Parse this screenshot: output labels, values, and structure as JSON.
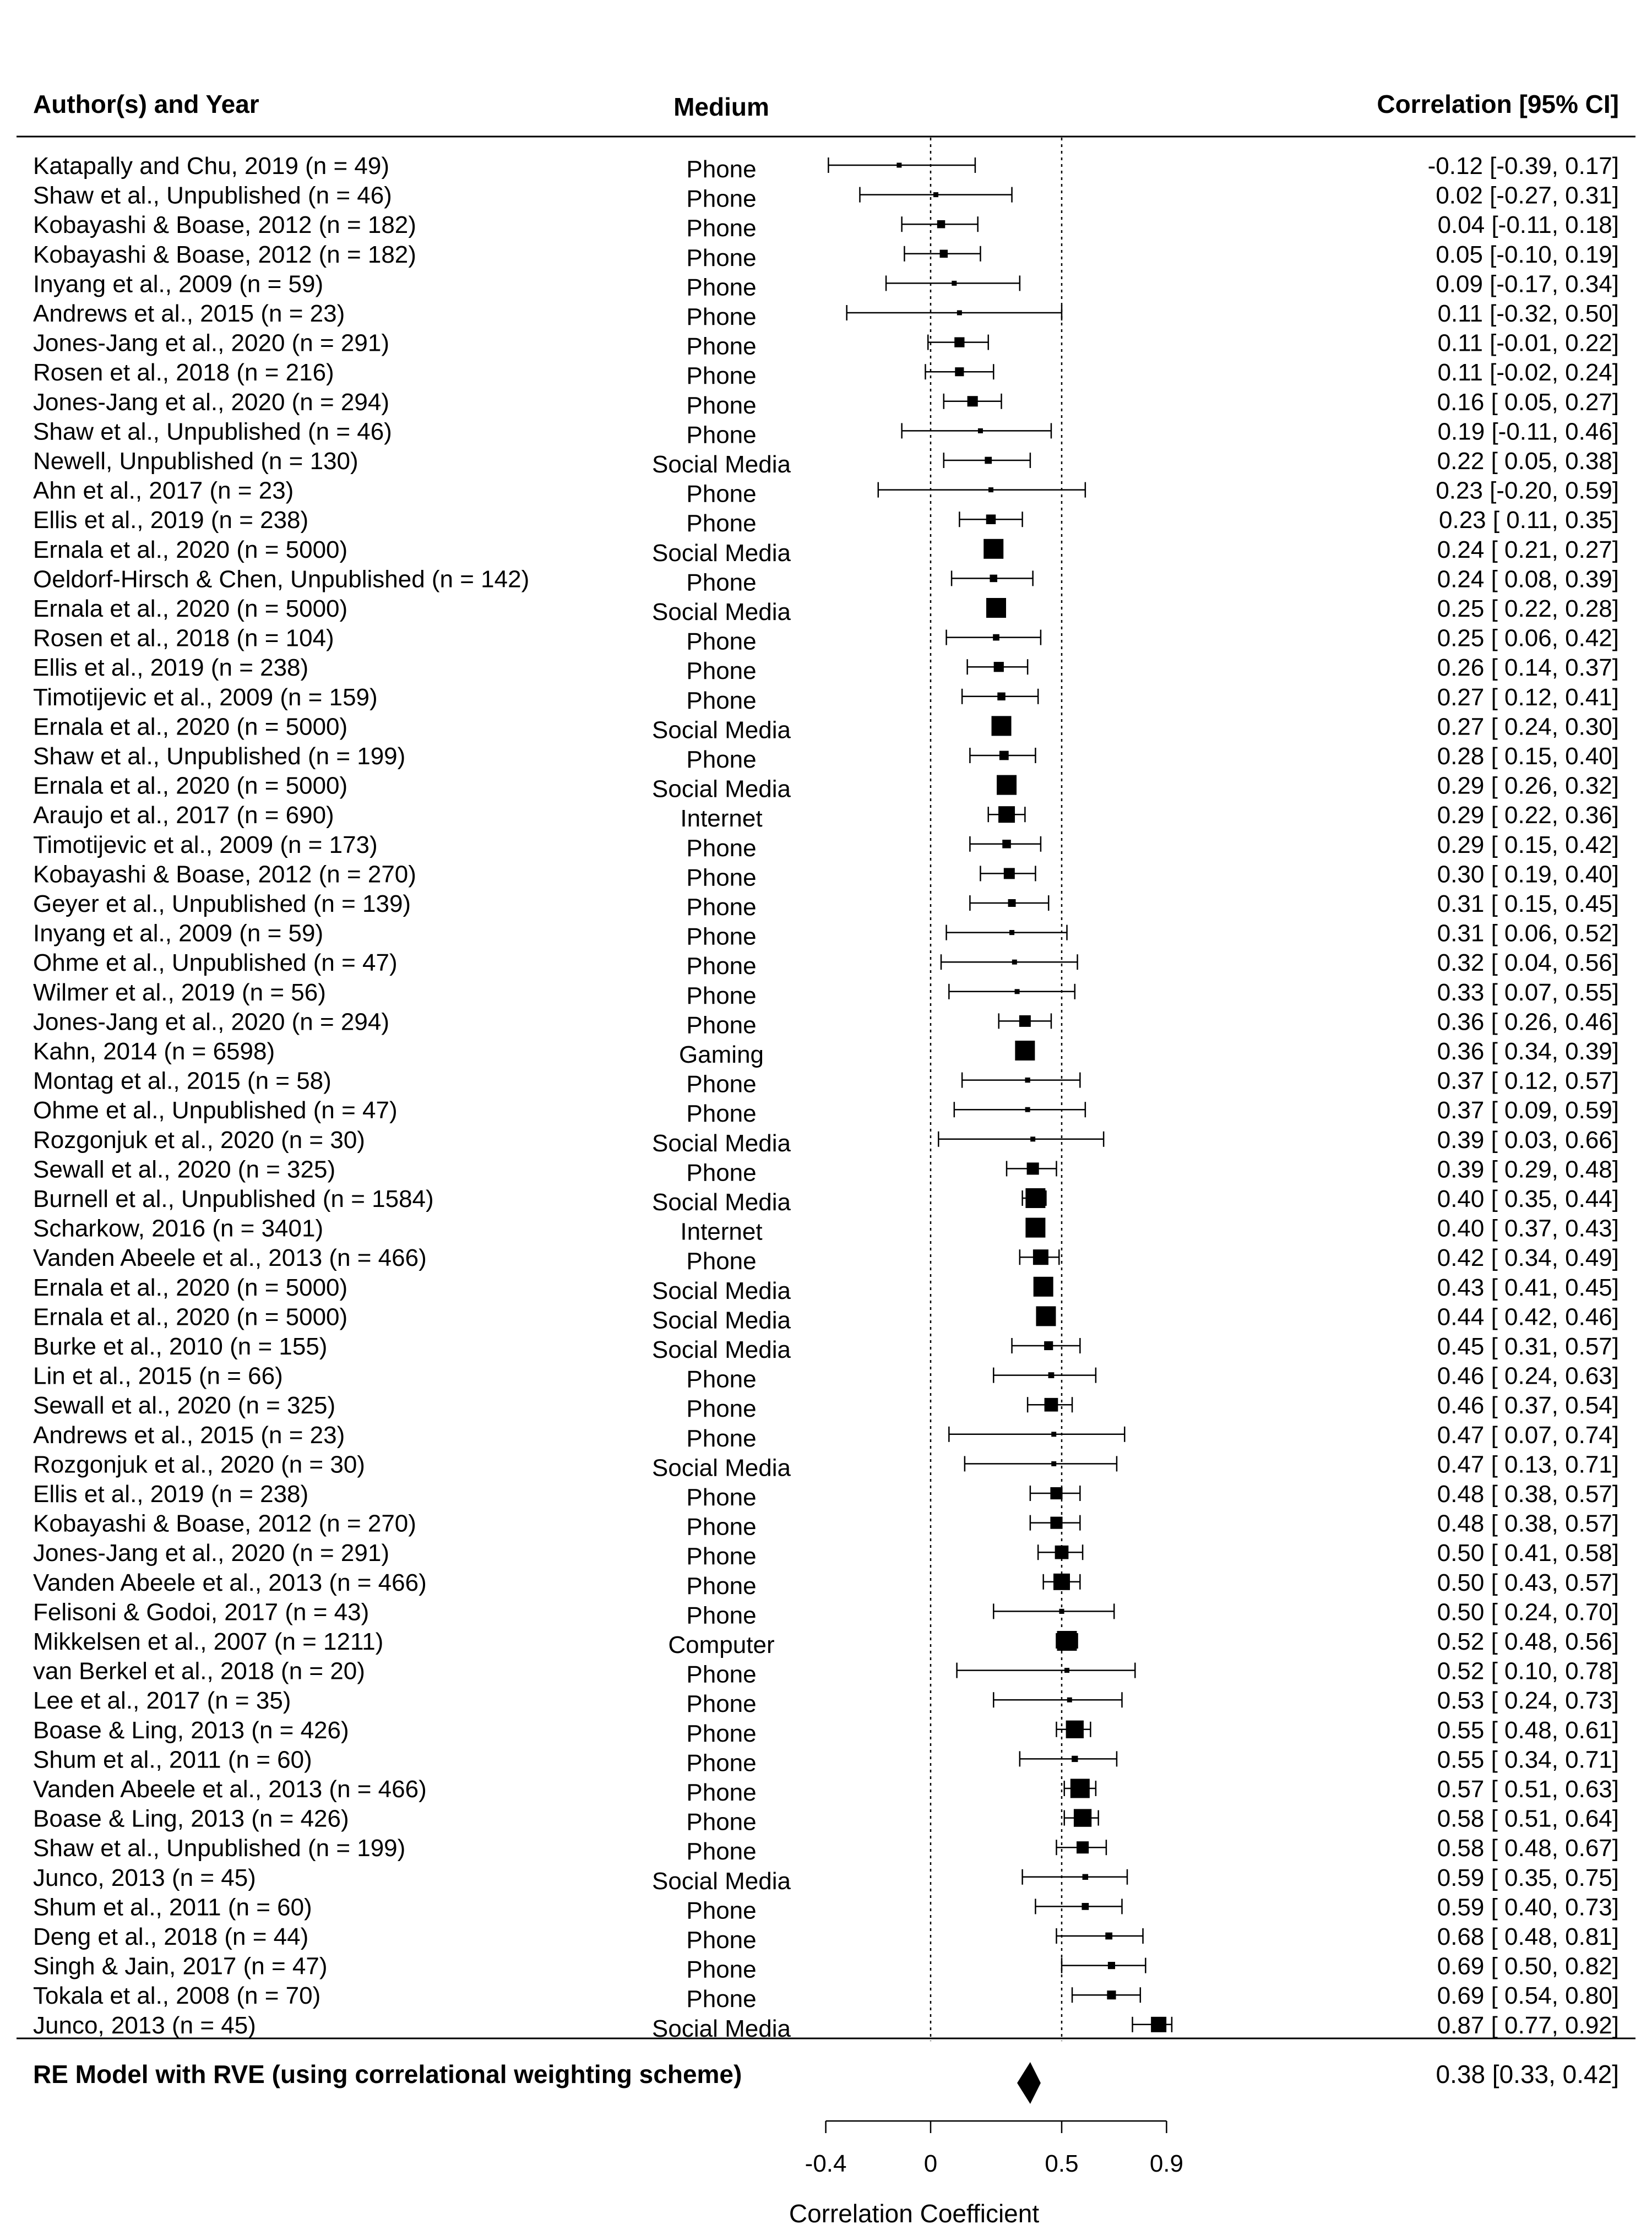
{
  "header": {
    "study": "Author(s) and Year",
    "medium": "Medium",
    "estimate": "Correlation [95% CI]"
  },
  "summary": {
    "label": "RE Model with RVE (using correlational weighting scheme)",
    "ci_text": "0.38 [0.33, 0.42]"
  },
  "chart_data": {
    "type": "forest",
    "xlabel": "Correlation Coefficient",
    "xticks": [
      -0.4,
      0,
      0.5,
      0.9
    ],
    "xtick_labels": [
      "-0.4",
      "0",
      "0.5",
      "0.9"
    ],
    "xlim": [
      -0.4,
      0.9
    ],
    "reference_lines": [
      0,
      0.5
    ],
    "summary": {
      "estimate": 0.38,
      "lower": 0.33,
      "upper": 0.42
    },
    "studies": [
      {
        "label": "Katapally and Chu, 2019 (n = 49)",
        "medium": "Phone",
        "r": -0.12,
        "lo": -0.39,
        "hi": 0.17,
        "ci_text": "-0.12 [-0.39, 0.17]"
      },
      {
        "label": "Shaw et al., Unpublished (n = 46)",
        "medium": "Phone",
        "r": 0.02,
        "lo": -0.27,
        "hi": 0.31,
        "ci_text": "0.02 [-0.27, 0.31]"
      },
      {
        "label": "Kobayashi & Boase, 2012 (n = 182)",
        "medium": "Phone",
        "r": 0.04,
        "lo": -0.11,
        "hi": 0.18,
        "ci_text": "0.04 [-0.11, 0.18]"
      },
      {
        "label": "Kobayashi & Boase, 2012 (n = 182)",
        "medium": "Phone",
        "r": 0.05,
        "lo": -0.1,
        "hi": 0.19,
        "ci_text": "0.05 [-0.10, 0.19]"
      },
      {
        "label": "Inyang et al., 2009 (n = 59)",
        "medium": "Phone",
        "r": 0.09,
        "lo": -0.17,
        "hi": 0.34,
        "ci_text": "0.09 [-0.17, 0.34]"
      },
      {
        "label": "Andrews et al., 2015 (n = 23)",
        "medium": "Phone",
        "r": 0.11,
        "lo": -0.32,
        "hi": 0.5,
        "ci_text": "0.11 [-0.32, 0.50]"
      },
      {
        "label": "Jones-Jang et al., 2020 (n = 291)",
        "medium": "Phone",
        "r": 0.11,
        "lo": -0.01,
        "hi": 0.22,
        "ci_text": "0.11 [-0.01, 0.22]"
      },
      {
        "label": "Rosen et al., 2018 (n = 216)",
        "medium": "Phone",
        "r": 0.11,
        "lo": -0.02,
        "hi": 0.24,
        "ci_text": "0.11 [-0.02, 0.24]"
      },
      {
        "label": "Jones-Jang et al., 2020 (n = 294)",
        "medium": "Phone",
        "r": 0.16,
        "lo": 0.05,
        "hi": 0.27,
        "ci_text": "0.16 [ 0.05, 0.27]"
      },
      {
        "label": "Shaw et al., Unpublished (n = 46)",
        "medium": "Phone",
        "r": 0.19,
        "lo": -0.11,
        "hi": 0.46,
        "ci_text": "0.19 [-0.11, 0.46]"
      },
      {
        "label": "Newell, Unpublished (n = 130)",
        "medium": "Social Media",
        "r": 0.22,
        "lo": 0.05,
        "hi": 0.38,
        "ci_text": "0.22 [ 0.05, 0.38]"
      },
      {
        "label": "Ahn et al., 2017 (n = 23)",
        "medium": "Phone",
        "r": 0.23,
        "lo": -0.2,
        "hi": 0.59,
        "ci_text": "0.23 [-0.20, 0.59]"
      },
      {
        "label": "Ellis et al., 2019 (n = 238)",
        "medium": "Phone",
        "r": 0.23,
        "lo": 0.11,
        "hi": 0.35,
        "ci_text": "0.23 [ 0.11, 0.35]"
      },
      {
        "label": "Ernala et al., 2020 (n = 5000)",
        "medium": "Social Media",
        "r": 0.24,
        "lo": 0.21,
        "hi": 0.27,
        "ci_text": "0.24 [ 0.21, 0.27]"
      },
      {
        "label": "Oeldorf-Hirsch & Chen, Unpublished (n = 142)",
        "medium": "Phone",
        "r": 0.24,
        "lo": 0.08,
        "hi": 0.39,
        "ci_text": "0.24 [ 0.08, 0.39]"
      },
      {
        "label": "Ernala et al., 2020 (n = 5000)",
        "medium": "Social Media",
        "r": 0.25,
        "lo": 0.22,
        "hi": 0.28,
        "ci_text": "0.25 [ 0.22, 0.28]"
      },
      {
        "label": "Rosen et al., 2018 (n = 104)",
        "medium": "Phone",
        "r": 0.25,
        "lo": 0.06,
        "hi": 0.42,
        "ci_text": "0.25 [ 0.06, 0.42]"
      },
      {
        "label": "Ellis et al., 2019 (n = 238)",
        "medium": "Phone",
        "r": 0.26,
        "lo": 0.14,
        "hi": 0.37,
        "ci_text": "0.26 [ 0.14, 0.37]"
      },
      {
        "label": "Timotijevic et al., 2009 (n = 159)",
        "medium": "Phone",
        "r": 0.27,
        "lo": 0.12,
        "hi": 0.41,
        "ci_text": "0.27 [ 0.12, 0.41]"
      },
      {
        "label": "Ernala et al., 2020 (n = 5000)",
        "medium": "Social Media",
        "r": 0.27,
        "lo": 0.24,
        "hi": 0.3,
        "ci_text": "0.27 [ 0.24, 0.30]"
      },
      {
        "label": "Shaw et al., Unpublished (n = 199)",
        "medium": "Phone",
        "r": 0.28,
        "lo": 0.15,
        "hi": 0.4,
        "ci_text": "0.28 [ 0.15, 0.40]"
      },
      {
        "label": "Ernala et al., 2020 (n = 5000)",
        "medium": "Social Media",
        "r": 0.29,
        "lo": 0.26,
        "hi": 0.32,
        "ci_text": "0.29 [ 0.26, 0.32]"
      },
      {
        "label": "Araujo et al., 2017 (n = 690)",
        "medium": "Internet",
        "r": 0.29,
        "lo": 0.22,
        "hi": 0.36,
        "ci_text": "0.29 [ 0.22, 0.36]"
      },
      {
        "label": "Timotijevic et al., 2009 (n = 173)",
        "medium": "Phone",
        "r": 0.29,
        "lo": 0.15,
        "hi": 0.42,
        "ci_text": "0.29 [ 0.15, 0.42]"
      },
      {
        "label": "Kobayashi & Boase, 2012 (n = 270)",
        "medium": "Phone",
        "r": 0.3,
        "lo": 0.19,
        "hi": 0.4,
        "ci_text": "0.30 [ 0.19, 0.40]"
      },
      {
        "label": "Geyer et al., Unpublished (n = 139)",
        "medium": "Phone",
        "r": 0.31,
        "lo": 0.15,
        "hi": 0.45,
        "ci_text": "0.31 [ 0.15, 0.45]"
      },
      {
        "label": "Inyang et al., 2009 (n = 59)",
        "medium": "Phone",
        "r": 0.31,
        "lo": 0.06,
        "hi": 0.52,
        "ci_text": "0.31 [ 0.06, 0.52]"
      },
      {
        "label": "Ohme et al., Unpublished (n = 47)",
        "medium": "Phone",
        "r": 0.32,
        "lo": 0.04,
        "hi": 0.56,
        "ci_text": "0.32 [ 0.04, 0.56]"
      },
      {
        "label": "Wilmer et al., 2019 (n = 56)",
        "medium": "Phone",
        "r": 0.33,
        "lo": 0.07,
        "hi": 0.55,
        "ci_text": "0.33 [ 0.07, 0.55]"
      },
      {
        "label": "Jones-Jang et al., 2020 (n = 294)",
        "medium": "Phone",
        "r": 0.36,
        "lo": 0.26,
        "hi": 0.46,
        "ci_text": "0.36 [ 0.26, 0.46]"
      },
      {
        "label": "Kahn, 2014 (n = 6598)",
        "medium": "Gaming",
        "r": 0.36,
        "lo": 0.34,
        "hi": 0.39,
        "ci_text": "0.36 [ 0.34, 0.39]"
      },
      {
        "label": "Montag et al., 2015 (n = 58)",
        "medium": "Phone",
        "r": 0.37,
        "lo": 0.12,
        "hi": 0.57,
        "ci_text": "0.37 [ 0.12, 0.57]"
      },
      {
        "label": "Ohme et al., Unpublished (n = 47)",
        "medium": "Phone",
        "r": 0.37,
        "lo": 0.09,
        "hi": 0.59,
        "ci_text": "0.37 [ 0.09, 0.59]"
      },
      {
        "label": "Rozgonjuk et al., 2020 (n = 30)",
        "medium": "Social Media",
        "r": 0.39,
        "lo": 0.03,
        "hi": 0.66,
        "ci_text": "0.39 [ 0.03, 0.66]"
      },
      {
        "label": "Sewall et al., 2020 (n = 325)",
        "medium": "Phone",
        "r": 0.39,
        "lo": 0.29,
        "hi": 0.48,
        "ci_text": "0.39 [ 0.29, 0.48]"
      },
      {
        "label": "Burnell et al., Unpublished (n = 1584)",
        "medium": "Social Media",
        "r": 0.4,
        "lo": 0.35,
        "hi": 0.44,
        "ci_text": "0.40 [ 0.35, 0.44]"
      },
      {
        "label": "Scharkow, 2016 (n = 3401)",
        "medium": "Internet",
        "r": 0.4,
        "lo": 0.37,
        "hi": 0.43,
        "ci_text": "0.40 [ 0.37, 0.43]"
      },
      {
        "label": "Vanden Abeele et al., 2013 (n = 466)",
        "medium": "Phone",
        "r": 0.42,
        "lo": 0.34,
        "hi": 0.49,
        "ci_text": "0.42 [ 0.34, 0.49]"
      },
      {
        "label": "Ernala et al., 2020 (n = 5000)",
        "medium": "Social Media",
        "r": 0.43,
        "lo": 0.41,
        "hi": 0.45,
        "ci_text": "0.43 [ 0.41, 0.45]"
      },
      {
        "label": "Ernala et al., 2020 (n = 5000)",
        "medium": "Social Media",
        "r": 0.44,
        "lo": 0.42,
        "hi": 0.46,
        "ci_text": "0.44 [ 0.42, 0.46]"
      },
      {
        "label": "Burke et al., 2010 (n = 155)",
        "medium": "Social Media",
        "r": 0.45,
        "lo": 0.31,
        "hi": 0.57,
        "ci_text": "0.45 [ 0.31, 0.57]"
      },
      {
        "label": "Lin et al., 2015 (n = 66)",
        "medium": "Phone",
        "r": 0.46,
        "lo": 0.24,
        "hi": 0.63,
        "ci_text": "0.46 [ 0.24, 0.63]"
      },
      {
        "label": "Sewall et al., 2020 (n = 325)",
        "medium": "Phone",
        "r": 0.46,
        "lo": 0.37,
        "hi": 0.54,
        "ci_text": "0.46 [ 0.37, 0.54]"
      },
      {
        "label": "Andrews et al., 2015 (n = 23)",
        "medium": "Phone",
        "r": 0.47,
        "lo": 0.07,
        "hi": 0.74,
        "ci_text": "0.47 [ 0.07, 0.74]"
      },
      {
        "label": "Rozgonjuk et al., 2020 (n = 30)",
        "medium": "Social Media",
        "r": 0.47,
        "lo": 0.13,
        "hi": 0.71,
        "ci_text": "0.47 [ 0.13, 0.71]"
      },
      {
        "label": "Ellis et al., 2019 (n = 238)",
        "medium": "Phone",
        "r": 0.48,
        "lo": 0.38,
        "hi": 0.57,
        "ci_text": "0.48 [ 0.38, 0.57]"
      },
      {
        "label": "Kobayashi & Boase, 2012 (n = 270)",
        "medium": "Phone",
        "r": 0.48,
        "lo": 0.38,
        "hi": 0.57,
        "ci_text": "0.48 [ 0.38, 0.57]"
      },
      {
        "label": "Jones-Jang et al., 2020 (n = 291)",
        "medium": "Phone",
        "r": 0.5,
        "lo": 0.41,
        "hi": 0.58,
        "ci_text": "0.50 [ 0.41, 0.58]"
      },
      {
        "label": "Vanden Abeele et al., 2013 (n = 466)",
        "medium": "Phone",
        "r": 0.5,
        "lo": 0.43,
        "hi": 0.57,
        "ci_text": "0.50 [ 0.43, 0.57]"
      },
      {
        "label": "Felisoni & Godoi, 2017 (n = 43)",
        "medium": "Phone",
        "r": 0.5,
        "lo": 0.24,
        "hi": 0.7,
        "ci_text": "0.50 [ 0.24, 0.70]"
      },
      {
        "label": "Mikkelsen et al., 2007 (n = 1211)",
        "medium": "Computer",
        "r": 0.52,
        "lo": 0.48,
        "hi": 0.56,
        "ci_text": "0.52 [ 0.48, 0.56]"
      },
      {
        "label": "van Berkel et al., 2018 (n = 20)",
        "medium": "Phone",
        "r": 0.52,
        "lo": 0.1,
        "hi": 0.78,
        "ci_text": "0.52 [ 0.10, 0.78]"
      },
      {
        "label": "Lee et al., 2017 (n = 35)",
        "medium": "Phone",
        "r": 0.53,
        "lo": 0.24,
        "hi": 0.73,
        "ci_text": "0.53 [ 0.24, 0.73]"
      },
      {
        "label": "Boase & Ling, 2013 (n = 426)",
        "medium": "Phone",
        "r": 0.55,
        "lo": 0.48,
        "hi": 0.61,
        "ci_text": "0.55 [ 0.48, 0.61]"
      },
      {
        "label": "Shum et al., 2011 (n = 60)",
        "medium": "Phone",
        "r": 0.55,
        "lo": 0.34,
        "hi": 0.71,
        "ci_text": "0.55 [ 0.34, 0.71]"
      },
      {
        "label": "Vanden Abeele et al., 2013 (n = 466)",
        "medium": "Phone",
        "r": 0.57,
        "lo": 0.51,
        "hi": 0.63,
        "ci_text": "0.57 [ 0.51, 0.63]"
      },
      {
        "label": "Boase & Ling, 2013 (n = 426)",
        "medium": "Phone",
        "r": 0.58,
        "lo": 0.51,
        "hi": 0.64,
        "ci_text": "0.58 [ 0.51, 0.64]"
      },
      {
        "label": "Shaw et al., Unpublished (n = 199)",
        "medium": "Phone",
        "r": 0.58,
        "lo": 0.48,
        "hi": 0.67,
        "ci_text": "0.58 [ 0.48, 0.67]"
      },
      {
        "label": "Junco, 2013 (n = 45)",
        "medium": "Social Media",
        "r": 0.59,
        "lo": 0.35,
        "hi": 0.75,
        "ci_text": "0.59 [ 0.35, 0.75]"
      },
      {
        "label": "Shum et al., 2011 (n = 60)",
        "medium": "Phone",
        "r": 0.59,
        "lo": 0.4,
        "hi": 0.73,
        "ci_text": "0.59 [ 0.40, 0.73]"
      },
      {
        "label": "Deng et al., 2018 (n = 44)",
        "medium": "Phone",
        "r": 0.68,
        "lo": 0.48,
        "hi": 0.81,
        "ci_text": "0.68 [ 0.48, 0.81]"
      },
      {
        "label": "Singh & Jain, 2017 (n = 47)",
        "medium": "Phone",
        "r": 0.69,
        "lo": 0.5,
        "hi": 0.82,
        "ci_text": "0.69 [ 0.50, 0.82]"
      },
      {
        "label": "Tokala et al., 2008 (n = 70)",
        "medium": "Phone",
        "r": 0.69,
        "lo": 0.54,
        "hi": 0.8,
        "ci_text": "0.69 [ 0.54, 0.80]"
      },
      {
        "label": "Junco, 2013 (n = 45)",
        "medium": "Social Media",
        "r": 0.87,
        "lo": 0.77,
        "hi": 0.92,
        "ci_text": "0.87 [ 0.77, 0.92]"
      }
    ]
  }
}
